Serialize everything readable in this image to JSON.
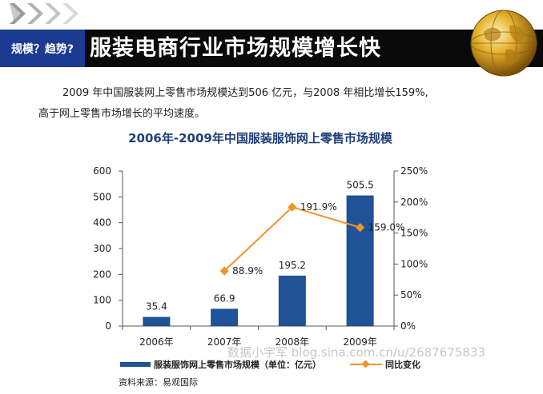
{
  "header": {
    "tag": "规模？趋势?",
    "title": "服装电商行业市场规模增长快"
  },
  "intro": {
    "line1": "2009 年中国服装网上零售市场规模达到506 亿元，与2008 年相比增长159%,",
    "line2": "高于网上零售市场增长的平均速度。"
  },
  "colors": {
    "bar": "#1f5296",
    "line": "#f1952a"
  },
  "chart_data": {
    "type": "bar+line",
    "title": "2006年-2009年中国服装服饰网上零售市场规模",
    "categories": [
      "2006年",
      "2007年",
      "2008年",
      "2009年"
    ],
    "series": [
      {
        "name": "服装服饰网上零售市场规模（单位：亿元）",
        "type": "bar",
        "axis": "left",
        "values": [
          35.4,
          66.9,
          195.2,
          505.5
        ],
        "labels": [
          "35.4",
          "66.9",
          "195.2",
          "505.5"
        ]
      },
      {
        "name": "同比变化",
        "type": "line",
        "axis": "right",
        "values": [
          null,
          88.9,
          191.9,
          159.0
        ],
        "labels": [
          "",
          "88.9%",
          "191.9%",
          "159.0%"
        ]
      }
    ],
    "y_left": {
      "min": 0,
      "max": 600,
      "ticks": [
        "0",
        "100",
        "200",
        "300",
        "400",
        "500",
        "600"
      ]
    },
    "y_right": {
      "min": 0,
      "max": 250,
      "ticks": [
        "0%",
        "50%",
        "100%",
        "150%",
        "200%",
        "250%"
      ]
    },
    "grid": false,
    "legend_position": "bottom"
  },
  "source": "资料来源：易观国际",
  "watermark": "数据小宇军 blog.sina.com.cn/u/2687675833"
}
